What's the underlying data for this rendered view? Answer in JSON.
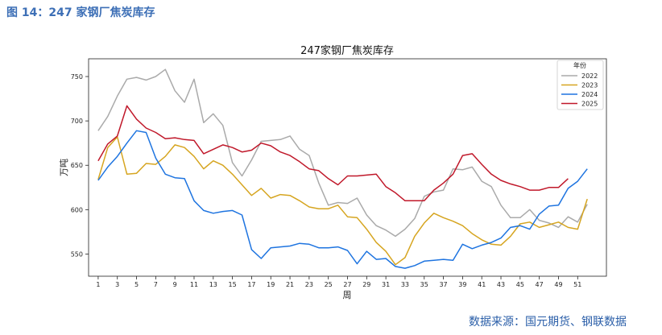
{
  "caption": "图 14：247 家钢厂焦炭库存",
  "source": "数据来源：国元期货、钢联数据",
  "chart_data": {
    "type": "line",
    "title": "247家钢厂焦炭库存",
    "xlabel": "周",
    "ylabel": "万吨",
    "xlim": [
      0,
      54
    ],
    "ylim": [
      525,
      770
    ],
    "xticks": [
      1,
      3,
      5,
      7,
      9,
      11,
      13,
      15,
      17,
      19,
      21,
      23,
      25,
      27,
      29,
      31,
      33,
      35,
      37,
      39,
      41,
      43,
      45,
      47,
      49,
      51
    ],
    "yticks": [
      550,
      600,
      650,
      700,
      750
    ],
    "grid": false,
    "legend": {
      "title": "年份",
      "placement": "top-right"
    },
    "series": [
      {
        "name": "2022",
        "color": "#aaaaaa",
        "values": [
          689,
          705,
          728,
          747,
          749,
          746,
          750,
          758,
          734,
          721,
          747,
          698,
          708,
          695,
          653,
          638,
          656,
          677,
          678,
          679,
          683,
          668,
          661,
          630,
          605,
          608,
          607,
          613,
          594,
          582,
          577,
          570,
          578,
          590,
          615,
          620,
          622,
          646,
          645,
          648,
          632,
          626,
          605,
          591,
          591,
          600,
          588,
          585,
          580,
          592,
          586,
          606
        ]
      },
      {
        "name": "2023",
        "color": "#d6a520",
        "values": [
          634,
          670,
          682,
          640,
          641,
          652,
          651,
          660,
          673,
          670,
          660,
          646,
          655,
          650,
          640,
          628,
          616,
          624,
          613,
          617,
          616,
          610,
          603,
          601,
          601,
          605,
          592,
          591,
          578,
          563,
          553,
          538,
          546,
          570,
          585,
          596,
          591,
          587,
          582,
          573,
          566,
          561,
          560,
          570,
          584,
          586,
          580,
          583,
          586,
          580,
          578,
          612
        ]
      },
      {
        "name": "2024",
        "color": "#1e74e0",
        "values": [
          633,
          648,
          660,
          675,
          689,
          687,
          658,
          640,
          636,
          635,
          610,
          599,
          596,
          598,
          599,
          594,
          555,
          545,
          557,
          558,
          559,
          562,
          561,
          557,
          557,
          558,
          554,
          539,
          553,
          544,
          545,
          536,
          534,
          537,
          542,
          543,
          544,
          543,
          561,
          556,
          560,
          563,
          568,
          580,
          582,
          578,
          595,
          604,
          605,
          624,
          632,
          646
        ]
      },
      {
        "name": "2025",
        "color": "#c0182a",
        "values": [
          655,
          674,
          683,
          717,
          702,
          692,
          687,
          680,
          681,
          679,
          678,
          663,
          668,
          673,
          670,
          665,
          667,
          675,
          672,
          665,
          661,
          654,
          646,
          644,
          635,
          628,
          638,
          638,
          639,
          640,
          626,
          619,
          610,
          610,
          610,
          622,
          630,
          640,
          661,
          663,
          651,
          640,
          633,
          629,
          626,
          622,
          622,
          625,
          625,
          635
        ]
      }
    ]
  }
}
